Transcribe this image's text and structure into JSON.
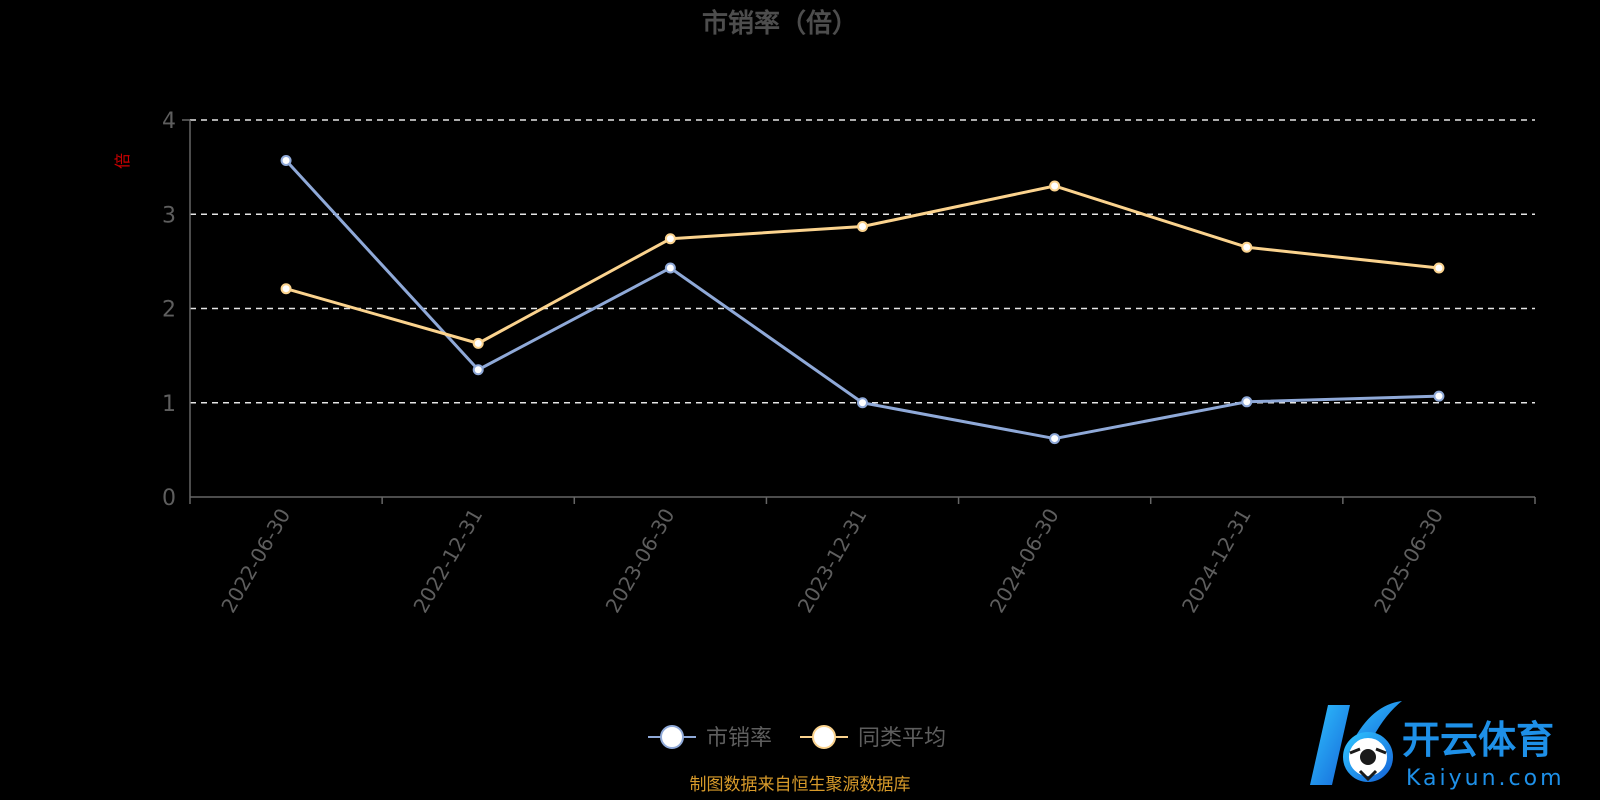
{
  "chart_data": {
    "type": "line",
    "title": "市销率（倍）",
    "ylabel": "倍",
    "xlabel": "",
    "categories": [
      "2022-06-30",
      "2022-12-31",
      "2023-06-30",
      "2023-12-31",
      "2024-06-30",
      "2024-12-31",
      "2025-06-30"
    ],
    "ylim": [
      0,
      4
    ],
    "yticks": [
      "0",
      "1",
      "2",
      "3",
      "4"
    ],
    "grid": true,
    "legend_position": "bottom-center",
    "series": [
      {
        "name": "市销率",
        "color": "#8fa9d8",
        "values": [
          3.57,
          1.35,
          2.43,
          1.0,
          0.62,
          1.01,
          1.07
        ]
      },
      {
        "name": "同类平均",
        "color": "#fbd38e",
        "values": [
          2.21,
          1.63,
          2.74,
          2.87,
          3.3,
          2.65,
          2.43
        ]
      }
    ]
  },
  "source_note": "制图数据来自恒生聚源数据库",
  "logo": {
    "brand_cn": "开云体育",
    "brand_en": "Kaiyun.com",
    "mark": "K"
  },
  "colors": {
    "background": "#000000",
    "axis": "#666666",
    "tick_label": "#5e5e5e",
    "title": "#4d4d4d",
    "ylabel": "#cc0000",
    "source": "#d79a2a",
    "logo_blue": "#1e90e8"
  }
}
